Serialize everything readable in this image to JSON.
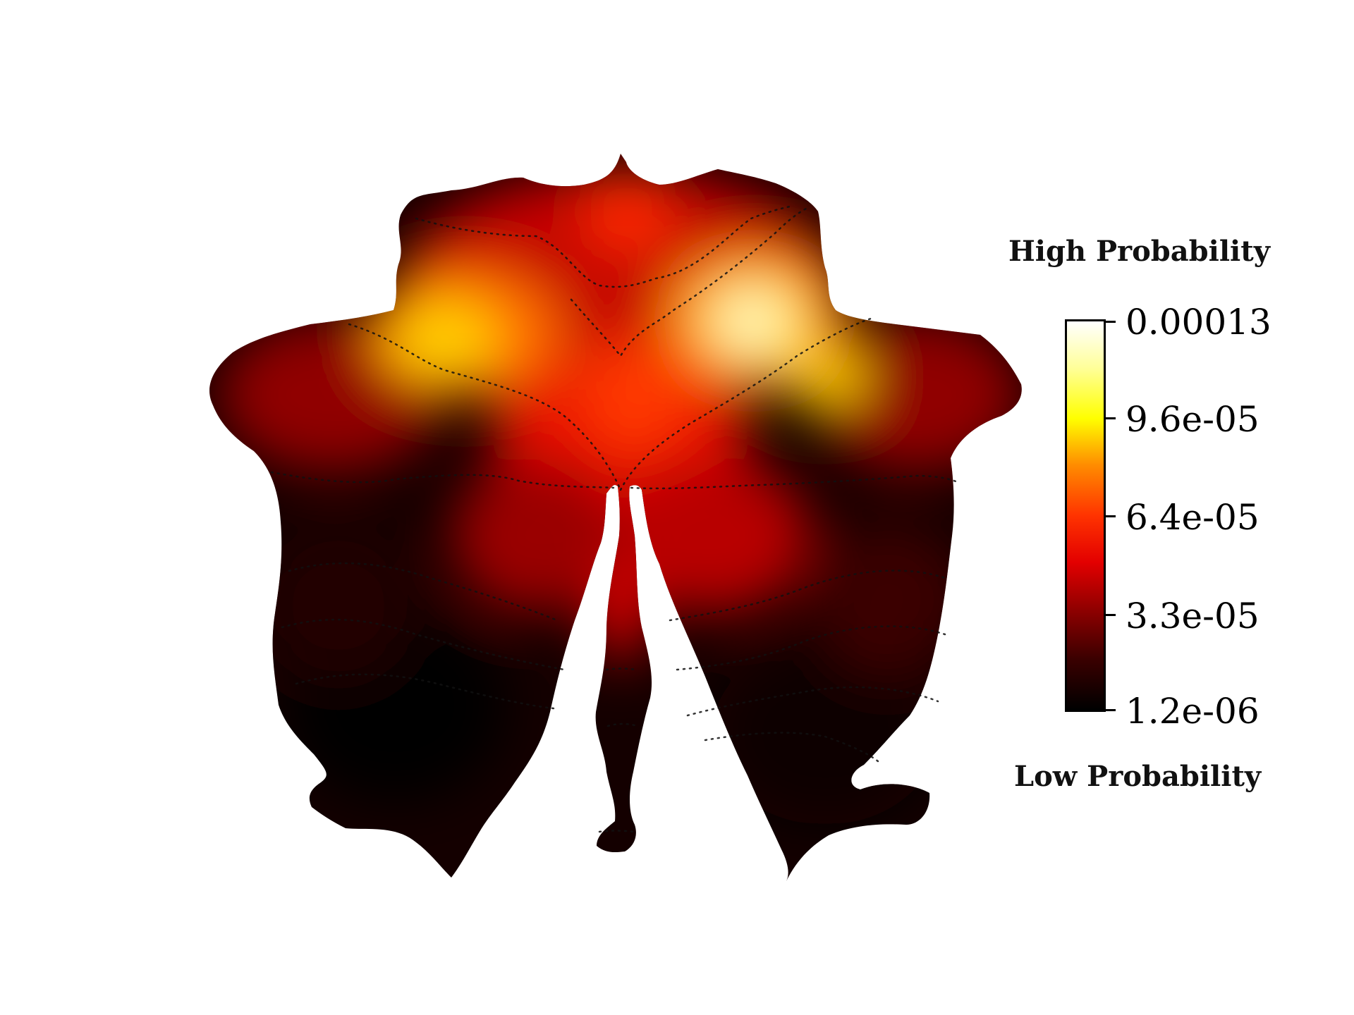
{
  "legend": {
    "high_label": "High Probability",
    "low_label": "Low Probability",
    "ticks": [
      "0.00013",
      "9.6e-05",
      "6.4e-05",
      "3.3e-05",
      "1.2e-06"
    ]
  },
  "colormap": {
    "name": "hot",
    "stops": [
      "#000000",
      "#3a0000",
      "#8a0000",
      "#e30000",
      "#ff3300",
      "#ff8c00",
      "#ffff00",
      "#ffff99",
      "#ffffff"
    ]
  }
}
